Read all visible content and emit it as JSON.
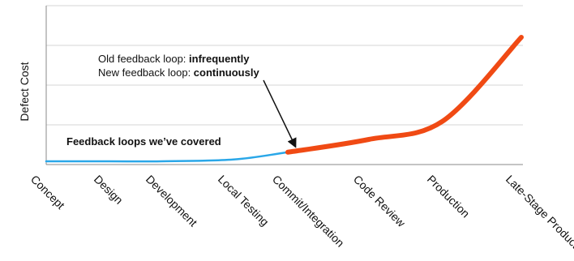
{
  "chart_data": {
    "type": "line",
    "ylabel": "Defect Cost",
    "categories": [
      "Concept",
      "Design",
      "Development",
      "Local Testing",
      "Commit/Integration",
      "Code Review",
      "Production",
      "Late-Stage Production"
    ],
    "grid": true,
    "series": [
      {
        "values": [
          1,
          1,
          1,
          1.5,
          3.5,
          7,
          12,
          35
        ],
        "color": "#2aa7e8"
      }
    ],
    "highlight": {
      "from_category": "Commit/Integration",
      "color": "#f04a14"
    },
    "annotations": {
      "old_loop_prefix": "Old feedback loop: ",
      "old_loop_value": "infrequently",
      "new_loop_prefix": "New feedback loop: ",
      "new_loop_value": "continuously",
      "covered_label": "Feedback loops we’ve covered"
    }
  }
}
